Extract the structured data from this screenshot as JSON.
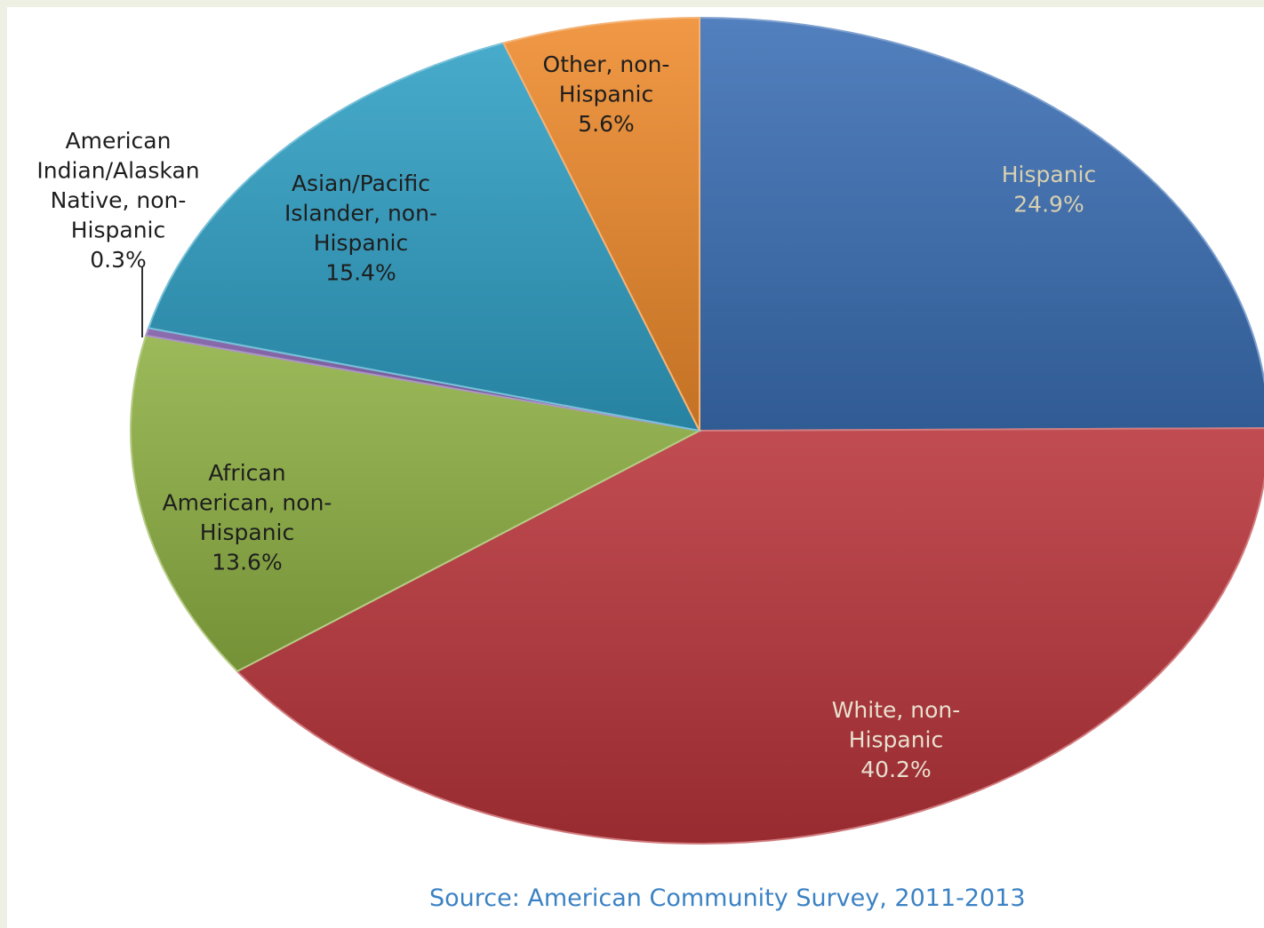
{
  "chart_data": {
    "type": "pie",
    "title": "",
    "start_angle_deg": 0,
    "direction": "clockwise",
    "slices": [
      {
        "name": "Hispanic",
        "value": 24.9,
        "label_lines": [
          "Hispanic"
        ],
        "value_label": "24.9%",
        "color": "#3a6fb5",
        "label_color": "#d9d0b0"
      },
      {
        "name": "White, non-Hispanic",
        "value": 40.2,
        "label_lines": [
          "White, non-",
          "Hispanic"
        ],
        "value_label": "40.2%",
        "color": "#b8353a",
        "label_color": "#e8e0d0"
      },
      {
        "name": "African American, non-Hispanic",
        "value": 13.6,
        "label_lines": [
          "African",
          "American, non-",
          "Hispanic"
        ],
        "value_label": "13.6%",
        "color": "#8fb143",
        "label_color": "#1e1e1e"
      },
      {
        "name": "American Indian/Alaskan Native, non-Hispanic",
        "value": 0.3,
        "label_lines": [
          "American",
          "Indian/Alaskan",
          "Native, non-",
          "Hispanic"
        ],
        "value_label": "0.3%",
        "color": "#7d5ba6",
        "label_color": "#1e1e1e",
        "external_label": true
      },
      {
        "name": "Asian/Pacific Islander, non-Hispanic",
        "value": 15.4,
        "label_lines": [
          "Asian/Pacific",
          "Islander, non-",
          "Hispanic"
        ],
        "value_label": "15.4%",
        "color": "#2f9fc4",
        "label_color": "#1e1e1e"
      },
      {
        "name": "Other, non-Hispanic",
        "value": 5.6,
        "label_lines": [
          "Other, non-",
          "Hispanic"
        ],
        "value_label": "5.6%",
        "color": "#ee8a2c",
        "label_color": "#1e1e1e"
      }
    ]
  },
  "source": "Source: American Community Survey, 2011-2013"
}
